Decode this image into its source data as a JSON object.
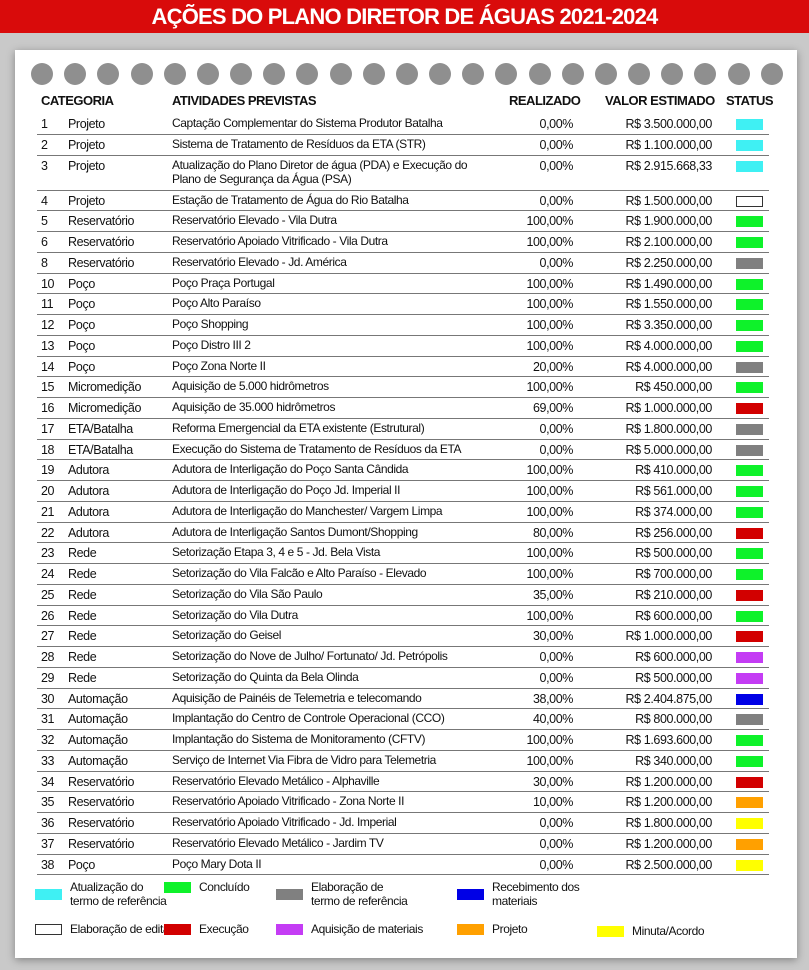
{
  "title": "AÇÕES DO PLANO DIRETOR DE ÁGUAS 2021-2024",
  "headers": {
    "categoria": "CATEGORIA",
    "atividades": "ATIVIDADES PREVISTAS",
    "realizado": "REALIZADO",
    "valor": "VALOR ESTIMADO",
    "status": "STATUS"
  },
  "colors": {
    "atualizacao": "#3ff0f3",
    "concluido": "#0ef22a",
    "elaboracao_termo": "#808080",
    "recebimento": "#0000e6",
    "edital": "#ffffff",
    "execucao": "#d20000",
    "aquisicao": "#c43cf4",
    "projeto": "#ffa000",
    "minuta": "#ffff00"
  },
  "rows": [
    {
      "n": "1",
      "cat": "Projeto",
      "act": "Captação Complementar do Sistema Produtor Batalha",
      "real": "0,00%",
      "val": "R$ 3.500.000,00",
      "status": "atualizacao"
    },
    {
      "n": "2",
      "cat": "Projeto",
      "act": "Sistema de Tratamento de Resíduos da ETA (STR)",
      "real": "0,00%",
      "val": "R$ 1.100.000,00",
      "status": "atualizacao"
    },
    {
      "n": "3",
      "cat": "Projeto",
      "act": "Atualização do Plano Diretor de água (PDA) e Execução do\nPlano de Segurança da Água (PSA)",
      "real": "0,00%",
      "val": "R$ 2.915.668,33",
      "status": "atualizacao"
    },
    {
      "n": "4",
      "cat": "Projeto",
      "act": "Estação de Tratamento de Água do Rio Batalha",
      "real": "0,00%",
      "val": "R$ 1.500.000,00",
      "status": "edital"
    },
    {
      "n": "5",
      "cat": "Reservatório",
      "act": "Reservatório Elevado - Vila Dutra",
      "real": "100,00%",
      "val": "R$ 1.900.000,00",
      "status": "concluido"
    },
    {
      "n": "6",
      "cat": "Reservatório",
      "act": "Reservatório Apoiado Vitrificado - Vila Dutra",
      "real": "100,00%",
      "val": "R$ 2.100.000,00",
      "status": "concluido"
    },
    {
      "n": "8",
      "cat": "Reservatório",
      "act": "Reservatório Elevado - Jd. América",
      "real": "0,00%",
      "val": "R$ 2.250.000,00",
      "status": "elaboracao_termo"
    },
    {
      "n": "10",
      "cat": "Poço",
      "act": "Poço Praça Portugal",
      "real": "100,00%",
      "val": "R$ 1.490.000,00",
      "status": "concluido"
    },
    {
      "n": "11",
      "cat": "Poço",
      "act": "Poço Alto Paraíso",
      "real": "100,00%",
      "val": "R$ 1.550.000,00",
      "status": "concluido"
    },
    {
      "n": "12",
      "cat": "Poço",
      "act": "Poço Shopping",
      "real": "100,00%",
      "val": "R$ 3.350.000,00",
      "status": "concluido"
    },
    {
      "n": "13",
      "cat": "Poço",
      "act": "Poço Distro III 2",
      "real": "100,00%",
      "val": "R$ 4.000.000,00",
      "status": "concluido"
    },
    {
      "n": "14",
      "cat": "Poço",
      "act": "Poço Zona Norte II",
      "real": "20,00%",
      "val": "R$ 4.000.000,00",
      "status": "elaboracao_termo"
    },
    {
      "n": "15",
      "cat": "Micromedição",
      "act": "Aquisição de 5.000 hidrômetros",
      "real": "100,00%",
      "val": "R$ 450.000,00",
      "status": "concluido"
    },
    {
      "n": "16",
      "cat": "Micromedição",
      "act": "Aquisição de 35.000 hidrômetros",
      "real": "69,00%",
      "val": "R$ 1.000.000,00",
      "status": "execucao"
    },
    {
      "n": "17",
      "cat": "ETA/Batalha",
      "act": "Reforma Emergencial da ETA existente (Estrutural)",
      "real": "0,00%",
      "val": "R$ 1.800.000,00",
      "status": "elaboracao_termo"
    },
    {
      "n": "18",
      "cat": "ETA/Batalha",
      "act": "Execução do Sistema de Tratamento de Resíduos da ETA",
      "real": "0,00%",
      "val": "R$ 5.000.000,00",
      "status": "elaboracao_termo"
    },
    {
      "n": "19",
      "cat": "Adutora",
      "act": "Adutora de Interligação do Poço Santa Cândida",
      "real": "100,00%",
      "val": "R$ 410.000,00",
      "status": "concluido"
    },
    {
      "n": "20",
      "cat": "Adutora",
      "act": "Adutora de Interligação do Poço Jd. Imperial II",
      "real": "100,00%",
      "val": "R$ 561.000,00",
      "status": "concluido"
    },
    {
      "n": "21",
      "cat": "Adutora",
      "act": "Adutora de Interligação do Manchester/ Vargem Limpa",
      "real": "100,00%",
      "val": "R$ 374.000,00",
      "status": "concluido"
    },
    {
      "n": "22",
      "cat": "Adutora",
      "act": "Adutora de Interligação Santos Dumont/Shopping",
      "real": "80,00%",
      "val": "R$ 256.000,00",
      "status": "execucao"
    },
    {
      "n": "23",
      "cat": "Rede",
      "act": "Setorização Etapa 3, 4 e 5 - Jd. Bela Vista",
      "real": "100,00%",
      "val": "R$ 500.000,00",
      "status": "concluido"
    },
    {
      "n": "24",
      "cat": "Rede",
      "act": "Setorização do Vila Falcão e Alto Paraíso - Elevado",
      "real": "100,00%",
      "val": "R$ 700.000,00",
      "status": "concluido"
    },
    {
      "n": "25",
      "cat": "Rede",
      "act": "Setorização do Vila São Paulo",
      "real": "35,00%",
      "val": "R$ 210.000,00",
      "status": "execucao"
    },
    {
      "n": "26",
      "cat": "Rede",
      "act": "Setorização do Vila Dutra",
      "real": "100,00%",
      "val": "R$ 600.000,00",
      "status": "concluido"
    },
    {
      "n": "27",
      "cat": "Rede",
      "act": "Setorização do Geisel",
      "real": "30,00%",
      "val": "R$ 1.000.000,00",
      "status": "execucao"
    },
    {
      "n": "28",
      "cat": "Rede",
      "act": "Setorização do Nove de Julho/ Fortunato/ Jd. Petrópolis",
      "real": "0,00%",
      "val": "R$ 600.000,00",
      "status": "aquisicao"
    },
    {
      "n": "29",
      "cat": "Rede",
      "act": "Setorização do Quinta da Bela Olinda",
      "real": "0,00%",
      "val": "R$ 500.000,00",
      "status": "aquisicao"
    },
    {
      "n": "30",
      "cat": "Automação",
      "act": "Aquisição de Painéis de Telemetria e telecomando",
      "real": "38,00%",
      "val": "R$ 2.404.875,00",
      "status": "recebimento"
    },
    {
      "n": "31",
      "cat": "Automação",
      "act": "Implantação do Centro de Controle Operacional (CCO)",
      "real": "40,00%",
      "val": "R$ 800.000,00",
      "status": "elaboracao_termo"
    },
    {
      "n": "32",
      "cat": "Automação",
      "act": "Implantação do Sistema de Monitoramento (CFTV)",
      "real": "100,00%",
      "val": "R$ 1.693.600,00",
      "status": "concluido"
    },
    {
      "n": "33",
      "cat": "Automação",
      "act": "Serviço de Internet Via Fibra de Vidro para Telemetria",
      "real": "100,00%",
      "val": "R$ 340.000,00",
      "status": "concluido"
    },
    {
      "n": "34",
      "cat": "Reservatório",
      "act": "Reservatório Elevado Metálico - Alphaville",
      "real": "30,00%",
      "val": "R$ 1.200.000,00",
      "status": "execucao"
    },
    {
      "n": "35",
      "cat": "Reservatório",
      "act": "Reservatório Apoiado Vitrificado - Zona Norte II",
      "real": "10,00%",
      "val": "R$ 1.200.000,00",
      "status": "projeto"
    },
    {
      "n": "36",
      "cat": "Reservatório",
      "act": "Reservatório Apoiado Vitrificado - Jd. Imperial",
      "real": "0,00%",
      "val": "R$ 1.800.000,00",
      "status": "minuta"
    },
    {
      "n": "37",
      "cat": "Reservatório",
      "act": "Reservatório Elevado Metálico - Jardim TV",
      "real": "0,00%",
      "val": "R$ 1.200.000,00",
      "status": "projeto"
    },
    {
      "n": "38",
      "cat": "Poço",
      "act": "Poço Mary Dota II",
      "real": "0,00%",
      "val": "R$ 2.500.000,00",
      "status": "minuta"
    }
  ],
  "legend": [
    {
      "key": "atualizacao",
      "label": "Atualização do\ntermo de referência"
    },
    {
      "key": "concluido",
      "label": "Concluído"
    },
    {
      "key": "elaboracao_termo",
      "label": "Elaboração de\ntermo de referência"
    },
    {
      "key": "recebimento",
      "label": "Recebimento dos\nmateriais"
    },
    {
      "key": "edital",
      "label": "Elaboração de edital"
    },
    {
      "key": "execucao",
      "label": "Execução"
    },
    {
      "key": "aquisicao",
      "label": "Aquisição de materiais"
    },
    {
      "key": "projeto",
      "label": "Projeto"
    },
    {
      "key": "minuta",
      "label": "Minuta/Acordo"
    }
  ]
}
